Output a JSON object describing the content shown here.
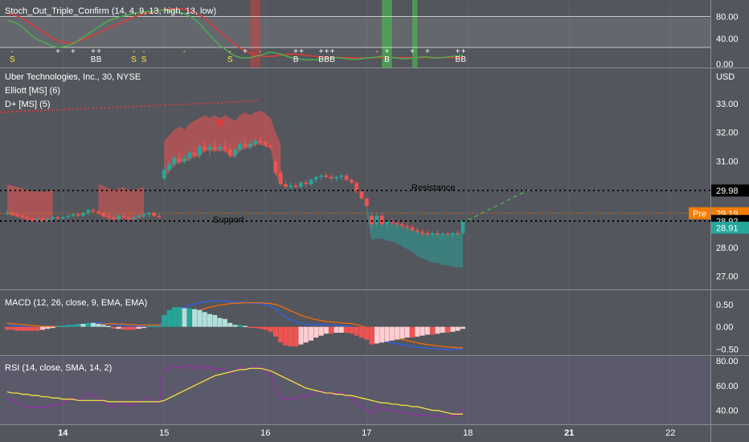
{
  "colors": {
    "bg": "#53565d",
    "panel_border": "#8a8d93",
    "text": "#ffffff",
    "bull": "#26a69a",
    "bear": "#ef5350",
    "orange": "#f57c00",
    "pre": "#f57c00",
    "last": "#26a69a",
    "black": "#000000",
    "green_line": "#4caf50",
    "red_line": "#e53935",
    "macd_line": "#2962ff",
    "signal_line": "#ff6d00",
    "rsi_line": "#9c27b0",
    "rsi_ma": "#ffeb3b"
  },
  "panels": {
    "stoch": {
      "title": "Stoch_Out_Triple_Confirm (14, 4, 9, 13, high, 13, low)",
      "ticks": [
        {
          "v": 80,
          "label": "80.00"
        },
        {
          "v": 40,
          "label": "40.00"
        },
        {
          "v": 0,
          "label": "0.00"
        }
      ],
      "range": [
        0,
        100
      ]
    },
    "price": {
      "symbol": "Uber Technologies, Inc., 30, NYSE",
      "ind1": "Elliott [MS] (6)",
      "ind2": "D+ [MS] (5)",
      "currency": "USD",
      "ticks": [
        {
          "v": 33,
          "label": "33.00"
        },
        {
          "v": 32,
          "label": "32.00"
        },
        {
          "v": 31,
          "label": "31.00"
        },
        {
          "v": 28,
          "label": "28.00"
        },
        {
          "v": 27,
          "label": "27.00"
        }
      ],
      "range": [
        26.6,
        34.2
      ]
    },
    "macd": {
      "title": "MACD (12, 26, close, 9, EMA, EMA)",
      "ticks": [
        {
          "v": 0.5,
          "label": "0.50"
        },
        {
          "v": 0,
          "label": "0.00"
        },
        {
          "v": -0.5,
          "label": "−0.50"
        }
      ],
      "range": [
        -0.6,
        0.75
      ]
    },
    "rsi": {
      "title": "RSI (14, close, SMA, 14, 2)",
      "ticks": [
        {
          "v": 80,
          "label": "80.00"
        },
        {
          "v": 60,
          "label": "60.00"
        },
        {
          "v": 40,
          "label": "40.00"
        }
      ],
      "range": [
        30,
        82
      ]
    }
  },
  "levels": {
    "resistance": {
      "value": 29.98,
      "label": "Resistance",
      "tag": "29.98"
    },
    "support": {
      "value": 28.92,
      "label": "Support",
      "tag": "28.92"
    },
    "pre": {
      "value": 29.19,
      "label": "Pre",
      "tag": "29.19"
    },
    "last": {
      "value": 28.91,
      "tag": "28.91"
    }
  },
  "signals": [
    {
      "i": 1,
      "top": "-",
      "bottom": "S",
      "color": "#ffeb3b"
    },
    {
      "i": 10,
      "top": "+",
      "bottom": "",
      "color": "#ffffff"
    },
    {
      "i": 13,
      "top": "+",
      "bottom": "",
      "color": "#ffffff"
    },
    {
      "i": 17,
      "top": "++",
      "bottom": "BB",
      "color": "#ffffff"
    },
    {
      "i": 25,
      "top": "-",
      "bottom": "S",
      "color": "#ffeb3b"
    },
    {
      "i": 27,
      "top": "-",
      "bottom": "S",
      "color": "#ffeb3b"
    },
    {
      "i": 35,
      "top": "-",
      "bottom": "",
      "color": "#ffeb3b"
    },
    {
      "i": 44,
      "top": "-",
      "bottom": "S",
      "color": "#ffeb3b"
    },
    {
      "i": 47,
      "top": "+",
      "bottom": "",
      "color": "#ffffff"
    },
    {
      "i": 50,
      "top": "-",
      "bottom": "",
      "color": "#ffeb3b"
    },
    {
      "i": 57,
      "top": "++",
      "bottom": "B",
      "color": "#ffffff"
    },
    {
      "i": 62,
      "top": "+++",
      "bottom": "BBB",
      "color": "#ffffff"
    },
    {
      "i": 73,
      "top": "-",
      "bottom": "",
      "color": "#ffeb3b"
    },
    {
      "i": 75,
      "top": "+",
      "bottom": "B",
      "color": "#ffffff"
    },
    {
      "i": 80,
      "top": "+",
      "bottom": "",
      "color": "#ffffff"
    },
    {
      "i": 83,
      "top": "+",
      "bottom": "",
      "color": "#ffffff"
    },
    {
      "i": 89,
      "top": "++",
      "bottom": "BB",
      "color": "#ffffff"
    }
  ],
  "x_axis": [
    {
      "label": "14",
      "pos": 11,
      "bold": true
    },
    {
      "label": "15",
      "pos": 31,
      "bold": false
    },
    {
      "label": "16",
      "pos": 51,
      "bold": false
    },
    {
      "label": "17",
      "pos": 71,
      "bold": false
    },
    {
      "label": "18",
      "pos": 91,
      "bold": false
    },
    {
      "label": "21",
      "pos": 111,
      "bold": true
    },
    {
      "label": "22",
      "pos": 131,
      "bold": false
    }
  ],
  "chart_data": {
    "type": "candlestick",
    "title": "Uber Technologies, Inc., 30, NYSE",
    "bar_interval": "30 min",
    "x_tick_labels": [
      "14",
      "15",
      "16",
      "17",
      "18",
      "21",
      "22"
    ],
    "ohlc": [
      [
        29.2,
        29.3,
        29.1,
        29.2
      ],
      [
        29.2,
        29.25,
        29.1,
        29.15
      ],
      [
        29.15,
        29.2,
        29.05,
        29.1
      ],
      [
        29.1,
        29.15,
        28.95,
        29.05
      ],
      [
        29.05,
        29.1,
        28.95,
        29.0
      ],
      [
        29.0,
        29.05,
        28.9,
        28.95
      ],
      [
        28.95,
        29.05,
        28.9,
        29.0
      ],
      [
        29.0,
        29.05,
        28.9,
        28.95
      ],
      [
        28.95,
        29.05,
        28.9,
        29.0
      ],
      [
        29.0,
        29.1,
        28.95,
        29.05
      ],
      [
        29.05,
        29.1,
        28.95,
        29.0
      ],
      [
        29.0,
        29.1,
        28.95,
        29.05
      ],
      [
        29.05,
        29.15,
        29.0,
        29.1
      ],
      [
        29.1,
        29.2,
        29.05,
        29.15
      ],
      [
        29.15,
        29.2,
        29.05,
        29.1
      ],
      [
        29.1,
        29.25,
        29.05,
        29.2
      ],
      [
        29.2,
        29.35,
        29.1,
        29.3
      ],
      [
        29.3,
        29.4,
        29.2,
        29.25
      ],
      [
        29.25,
        29.3,
        29.15,
        29.2
      ],
      [
        29.2,
        29.25,
        29.05,
        29.1
      ],
      [
        29.1,
        29.15,
        28.95,
        29.05
      ],
      [
        29.05,
        29.1,
        28.95,
        29.0
      ],
      [
        29.0,
        29.15,
        28.95,
        29.1
      ],
      [
        29.1,
        29.2,
        29.0,
        29.05
      ],
      [
        29.05,
        29.1,
        28.95,
        29.0
      ],
      [
        29.0,
        29.1,
        28.95,
        29.05
      ],
      [
        29.05,
        29.15,
        29.0,
        29.1
      ],
      [
        29.1,
        29.2,
        29.0,
        29.15
      ],
      [
        29.15,
        29.25,
        29.05,
        29.2
      ],
      [
        29.2,
        29.25,
        29.05,
        29.1
      ],
      [
        29.1,
        29.15,
        29.0,
        29.05
      ],
      [
        30.4,
        30.8,
        30.3,
        30.7
      ],
      [
        30.7,
        31.0,
        30.6,
        30.9
      ],
      [
        30.9,
        31.2,
        30.8,
        31.1
      ],
      [
        31.1,
        31.3,
        30.9,
        31.0
      ],
      [
        31.0,
        31.2,
        30.9,
        31.1
      ],
      [
        31.1,
        31.4,
        31.0,
        31.3
      ],
      [
        31.3,
        31.5,
        31.1,
        31.2
      ],
      [
        31.2,
        31.6,
        31.1,
        31.5
      ],
      [
        31.5,
        31.7,
        31.3,
        31.4
      ],
      [
        31.4,
        31.6,
        31.2,
        31.5
      ],
      [
        31.5,
        31.7,
        31.3,
        31.4
      ],
      [
        31.4,
        31.6,
        31.3,
        31.5
      ],
      [
        31.5,
        31.7,
        31.3,
        31.4
      ],
      [
        31.4,
        31.6,
        31.1,
        31.2
      ],
      [
        31.2,
        31.5,
        31.1,
        31.4
      ],
      [
        31.4,
        31.7,
        31.3,
        31.6
      ],
      [
        31.6,
        31.8,
        31.4,
        31.5
      ],
      [
        31.5,
        31.7,
        31.4,
        31.6
      ],
      [
        31.6,
        31.8,
        31.5,
        31.7
      ],
      [
        31.7,
        31.85,
        31.55,
        31.65
      ],
      [
        31.65,
        31.75,
        31.5,
        31.55
      ],
      [
        31.55,
        31.6,
        31.4,
        31.5
      ],
      [
        31.0,
        31.1,
        30.5,
        30.6
      ],
      [
        30.6,
        30.7,
        30.15,
        30.2
      ],
      [
        30.2,
        30.3,
        30.05,
        30.1
      ],
      [
        30.1,
        30.25,
        30.0,
        30.15
      ],
      [
        30.15,
        30.25,
        30.05,
        30.1
      ],
      [
        30.1,
        30.3,
        30.05,
        30.25
      ],
      [
        30.25,
        30.35,
        30.1,
        30.2
      ],
      [
        30.2,
        30.4,
        30.15,
        30.35
      ],
      [
        30.35,
        30.5,
        30.25,
        30.45
      ],
      [
        30.45,
        30.55,
        30.35,
        30.5
      ],
      [
        30.5,
        30.6,
        30.4,
        30.45
      ],
      [
        30.45,
        30.55,
        30.3,
        30.4
      ],
      [
        30.4,
        30.5,
        30.3,
        30.45
      ],
      [
        30.45,
        30.55,
        30.35,
        30.5
      ],
      [
        30.5,
        30.55,
        30.3,
        30.35
      ],
      [
        30.35,
        30.4,
        30.2,
        30.25
      ],
      [
        30.25,
        30.3,
        29.9,
        29.95
      ],
      [
        29.95,
        30.0,
        29.65,
        29.7
      ],
      [
        29.7,
        29.75,
        29.4,
        29.45
      ],
      [
        29.1,
        29.2,
        28.6,
        28.8
      ],
      [
        28.8,
        29.2,
        28.7,
        29.1
      ],
      [
        29.1,
        29.2,
        28.75,
        28.8
      ],
      [
        28.8,
        28.95,
        28.7,
        28.9
      ],
      [
        28.9,
        29.0,
        28.75,
        28.85
      ],
      [
        28.85,
        28.95,
        28.7,
        28.8
      ],
      [
        28.8,
        28.9,
        28.65,
        28.75
      ],
      [
        28.75,
        28.85,
        28.6,
        28.7
      ],
      [
        28.7,
        28.8,
        28.55,
        28.6
      ],
      [
        28.6,
        28.7,
        28.45,
        28.55
      ],
      [
        28.55,
        28.65,
        28.4,
        28.5
      ],
      [
        28.5,
        28.6,
        28.4,
        28.45
      ],
      [
        28.45,
        28.55,
        28.35,
        28.5
      ],
      [
        28.5,
        28.6,
        28.4,
        28.45
      ],
      [
        28.45,
        28.55,
        28.35,
        28.48
      ],
      [
        28.48,
        28.55,
        28.4,
        28.45
      ],
      [
        28.45,
        28.55,
        28.38,
        28.5
      ],
      [
        28.5,
        28.6,
        28.42,
        28.48
      ],
      [
        28.5,
        28.95,
        28.45,
        28.91
      ]
    ],
    "stoch_k": [
      78,
      76,
      72,
      66,
      58,
      50,
      44,
      40,
      36,
      32,
      30,
      31,
      33,
      37,
      42,
      48,
      54,
      60,
      66,
      72,
      77,
      81,
      84,
      86,
      88,
      90,
      92,
      93,
      94,
      95,
      96,
      96,
      95,
      94,
      92,
      90,
      86,
      80,
      72,
      62,
      52,
      42,
      34,
      27,
      20,
      15,
      12,
      11,
      12,
      14,
      16,
      19,
      22,
      20,
      18,
      15,
      12,
      10,
      9,
      8,
      8,
      8,
      9,
      10,
      11,
      12,
      11,
      10,
      9,
      9,
      10,
      11,
      12,
      13,
      14,
      13,
      12,
      11,
      10,
      10,
      11,
      12,
      13,
      13,
      12,
      11,
      12,
      13,
      14,
      15,
      16
    ],
    "stoch_d": [
      90,
      89,
      86,
      82,
      76,
      70,
      64,
      58,
      52,
      46,
      42,
      39,
      38,
      39,
      41,
      44,
      48,
      52,
      56,
      60,
      64,
      68,
      72,
      76,
      80,
      84,
      87,
      90,
      92,
      94,
      96,
      97,
      98,
      99,
      99,
      98,
      96,
      93,
      88,
      82,
      74,
      66,
      58,
      50,
      42,
      35,
      29,
      24,
      20,
      17,
      15,
      14,
      14,
      15,
      16,
      17,
      18,
      18,
      17,
      16,
      15,
      14,
      13,
      12,
      12,
      12,
      12,
      12,
      12,
      11,
      11,
      11,
      11,
      12,
      12,
      12,
      12,
      12,
      12,
      12,
      12,
      12,
      12,
      12,
      12,
      12,
      12,
      12,
      12,
      12,
      12
    ],
    "macd": [
      0.05,
      0.04,
      0.02,
      0.01,
      0.0,
      -0.01,
      -0.02,
      -0.02,
      -0.01,
      0.0,
      0.01,
      0.02,
      0.03,
      0.04,
      0.05,
      0.06,
      0.08,
      0.09,
      0.09,
      0.08,
      0.07,
      0.05,
      0.04,
      0.03,
      0.02,
      0.02,
      0.02,
      0.03,
      0.04,
      0.04,
      0.04,
      0.18,
      0.27,
      0.35,
      0.4,
      0.44,
      0.48,
      0.51,
      0.54,
      0.56,
      0.57,
      0.58,
      0.58,
      0.58,
      0.56,
      0.55,
      0.55,
      0.54,
      0.53,
      0.53,
      0.52,
      0.5,
      0.47,
      0.4,
      0.3,
      0.22,
      0.16,
      0.11,
      0.08,
      0.06,
      0.05,
      0.05,
      0.05,
      0.05,
      0.04,
      0.04,
      0.03,
      0.02,
      0.0,
      -0.04,
      -0.09,
      -0.15,
      -0.25,
      -0.28,
      -0.31,
      -0.34,
      -0.36,
      -0.38,
      -0.4,
      -0.42,
      -0.44,
      -0.46,
      -0.47,
      -0.48,
      -0.49,
      -0.5,
      -0.5,
      -0.51,
      -0.51,
      -0.51,
      -0.49
    ],
    "signal": [
      0.08,
      0.07,
      0.06,
      0.05,
      0.04,
      0.03,
      0.02,
      0.01,
      0.01,
      0.01,
      0.01,
      0.01,
      0.01,
      0.02,
      0.02,
      0.03,
      0.04,
      0.05,
      0.06,
      0.06,
      0.07,
      0.07,
      0.06,
      0.06,
      0.05,
      0.05,
      0.04,
      0.04,
      0.04,
      0.04,
      0.04,
      0.06,
      0.1,
      0.15,
      0.2,
      0.25,
      0.29,
      0.33,
      0.37,
      0.41,
      0.44,
      0.46,
      0.49,
      0.5,
      0.52,
      0.53,
      0.53,
      0.54,
      0.54,
      0.54,
      0.54,
      0.53,
      0.52,
      0.5,
      0.46,
      0.41,
      0.36,
      0.31,
      0.26,
      0.22,
      0.19,
      0.16,
      0.14,
      0.12,
      0.11,
      0.1,
      0.09,
      0.08,
      0.07,
      0.05,
      0.02,
      -0.02,
      -0.07,
      -0.11,
      -0.15,
      -0.19,
      -0.22,
      -0.25,
      -0.28,
      -0.31,
      -0.33,
      -0.36,
      -0.38,
      -0.4,
      -0.41,
      -0.43,
      -0.44,
      -0.45,
      -0.46,
      -0.47,
      -0.47
    ],
    "rsi": [
      50,
      48,
      46,
      44,
      43,
      42,
      43,
      42,
      43,
      45,
      44,
      46,
      48,
      50,
      48,
      50,
      54,
      52,
      50,
      46,
      44,
      43,
      46,
      45,
      44,
      45,
      47,
      49,
      51,
      47,
      46,
      72,
      74,
      76,
      74,
      75,
      77,
      73,
      76,
      74,
      75,
      73,
      74,
      73,
      70,
      72,
      75,
      73,
      74,
      75,
      74,
      72,
      70,
      56,
      50,
      49,
      50,
      49,
      52,
      51,
      53,
      55,
      56,
      54,
      53,
      54,
      55,
      52,
      50,
      46,
      43,
      40,
      37,
      44,
      40,
      41,
      40,
      39,
      38,
      38,
      37,
      36,
      36,
      36,
      35,
      36,
      35,
      35,
      36,
      36,
      41
    ],
    "rsi_ma": [
      55,
      54,
      54,
      53,
      53,
      52,
      52,
      51,
      51,
      50,
      50,
      49,
      49,
      49,
      48,
      48,
      48,
      48,
      48,
      48,
      47,
      47,
      47,
      47,
      47,
      47,
      47,
      47,
      47,
      47,
      47,
      48,
      50,
      52,
      54,
      56,
      58,
      60,
      62,
      64,
      66,
      68,
      69,
      70,
      71,
      72,
      73,
      73,
      74,
      74,
      74,
      73,
      72,
      70,
      68,
      66,
      64,
      62,
      60,
      58,
      57,
      56,
      55,
      54,
      54,
      53,
      53,
      52,
      52,
      51,
      50,
      49,
      48,
      47,
      46,
      46,
      45,
      45,
      44,
      44,
      43,
      43,
      42,
      41,
      40,
      40,
      39,
      38,
      37,
      37,
      37
    ],
    "y_ticks_price": [
      "33.00",
      "32.00",
      "31.00",
      "28.00",
      "27.00"
    ]
  }
}
